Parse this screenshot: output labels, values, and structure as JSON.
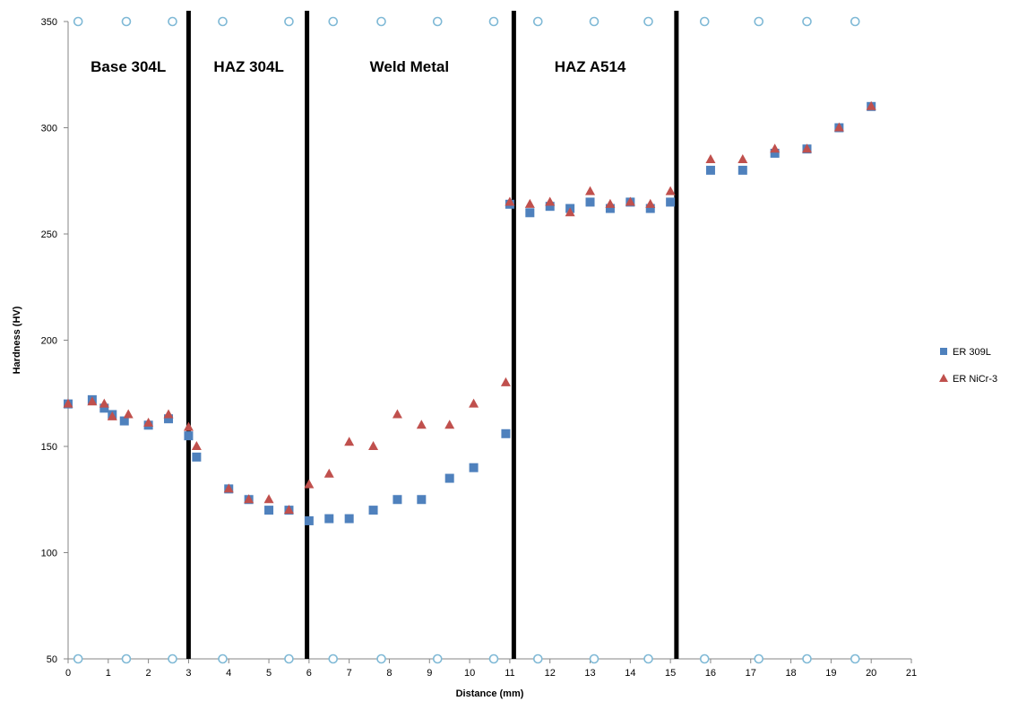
{
  "chart_data": {
    "type": "scatter",
    "title": "",
    "xlabel": "Distance (mm)",
    "ylabel": "Hardness (HV)",
    "xlim": [
      0,
      21
    ],
    "ylim": [
      50,
      350
    ],
    "x_ticks": [
      0,
      1,
      2,
      3,
      4,
      5,
      6,
      7,
      8,
      9,
      10,
      11,
      12,
      13,
      14,
      15,
      16,
      17,
      18,
      19,
      20,
      21
    ],
    "y_ticks": [
      50,
      100,
      150,
      200,
      250,
      300,
      350
    ],
    "grid": false,
    "legend_position": "right",
    "region_boundaries": [
      3,
      5.95,
      11.1,
      15.15
    ],
    "regions": [
      {
        "label": "Base 304L",
        "x_center": 1.5
      },
      {
        "label": "HAZ 304L",
        "x_center": 4.5
      },
      {
        "label": "Weld Metal",
        "x_center": 8.5
      },
      {
        "label": "HAZ A514",
        "x_center": 13.0
      }
    ],
    "indent_marks_x": [
      0.25,
      1.45,
      2.6,
      3.85,
      5.5,
      6.6,
      7.8,
      9.2,
      10.6,
      11.7,
      13.1,
      14.45,
      15.85,
      17.2,
      18.4,
      19.6
    ],
    "series": [
      {
        "name": "ER 309L",
        "marker": "square",
        "color": "#4F81BD",
        "x": [
          0,
          0.6,
          0.9,
          1.1,
          1.4,
          2.0,
          2.5,
          3.0,
          3.2,
          4.0,
          4.5,
          5.0,
          5.5,
          6.0,
          6.5,
          7.0,
          7.6,
          8.2,
          8.8,
          9.5,
          10.1,
          10.9,
          11.0,
          11.5,
          12.0,
          12.5,
          13.0,
          13.5,
          14.0,
          14.5,
          15.0,
          16.0,
          16.8,
          17.6,
          18.4,
          19.2,
          20.0
        ],
        "y": [
          170,
          172,
          168,
          165,
          162,
          160,
          163,
          155,
          145,
          130,
          125,
          120,
          120,
          115,
          116,
          116,
          120,
          125,
          125,
          135,
          140,
          156,
          264,
          260,
          263,
          262,
          265,
          262,
          265,
          262,
          265,
          280,
          280,
          288,
          290,
          300,
          310
        ]
      },
      {
        "name": "ER NiCr-3",
        "marker": "triangle",
        "color": "#C0504D",
        "x": [
          0,
          0.6,
          0.9,
          1.1,
          1.5,
          2.0,
          2.5,
          3.0,
          3.2,
          4.0,
          4.5,
          5.0,
          5.5,
          6.0,
          6.5,
          7.0,
          7.6,
          8.2,
          8.8,
          9.5,
          10.1,
          10.9,
          11.0,
          11.5,
          12.0,
          12.5,
          13.0,
          13.5,
          14.0,
          14.5,
          15.0,
          16.0,
          16.8,
          17.6,
          18.4,
          19.2,
          20.0
        ],
        "y": [
          170,
          171,
          170,
          164,
          165,
          161,
          165,
          159,
          150,
          130,
          125,
          125,
          120,
          132,
          137,
          152,
          150,
          165,
          160,
          160,
          170,
          180,
          265,
          264,
          265,
          260,
          270,
          264,
          265,
          264,
          270,
          285,
          285,
          290,
          290,
          300,
          310
        ]
      }
    ]
  }
}
